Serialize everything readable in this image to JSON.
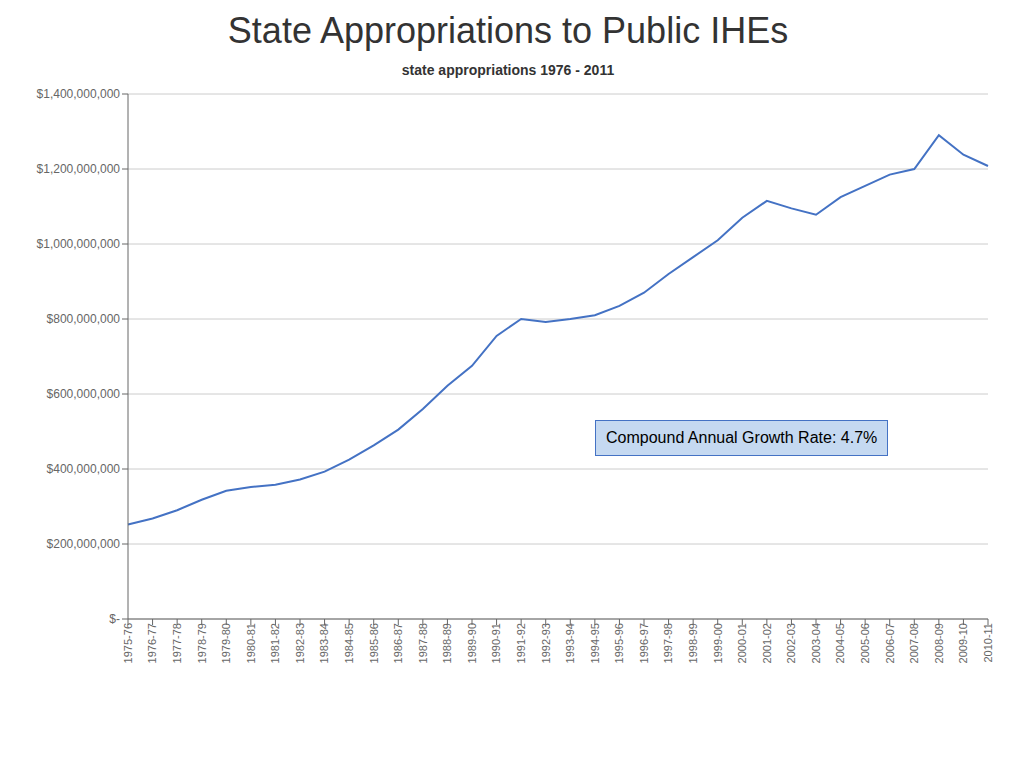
{
  "chart_data": {
    "type": "line",
    "title": "State Appropriations to Public IHEs",
    "subtitle": "state appropriations 1976 - 2011",
    "annotation": "Compound Annual Growth Rate: 4.7%",
    "categories": [
      "1975-76",
      "1976-77",
      "1977-78",
      "1978-79",
      "1979-80",
      "1980-81",
      "1981-82",
      "1982-83",
      "1983-84",
      "1984-85",
      "1985-86",
      "1986-87",
      "1987-88",
      "1988-89",
      "1989-90",
      "1990-91",
      "1991-92",
      "1992-93",
      "1993-94",
      "1994-95",
      "1995-96",
      "1996-97",
      "1997-98",
      "1998-99",
      "1999-00",
      "2000-01",
      "2001-02",
      "2002-03",
      "2003-04",
      "2004-05",
      "2005-06",
      "2006-07",
      "2007-08",
      "2008-09",
      "2009-10",
      "2010-11"
    ],
    "values": [
      252000000,
      268000000,
      290000000,
      318000000,
      342000000,
      352000000,
      358000000,
      372000000,
      393000000,
      425000000,
      463000000,
      505000000,
      560000000,
      622000000,
      675000000,
      755000000,
      800000000,
      792000000,
      800000000,
      810000000,
      835000000,
      870000000,
      920000000,
      965000000,
      1010000000,
      1070000000,
      1115000000,
      1095000000,
      1078000000,
      1125000000,
      1155000000,
      1185000000,
      1200000000,
      1290000000,
      1238000000,
      1208000000
    ],
    "color": "#4472C4",
    "ylim": [
      0,
      1400000000
    ],
    "yticks": [
      {
        "value": 0,
        "label": "$-"
      },
      {
        "value": 200000000,
        "label": "$200,000,000"
      },
      {
        "value": 400000000,
        "label": "$400,000,000"
      },
      {
        "value": 600000000,
        "label": "$600,000,000"
      },
      {
        "value": 800000000,
        "label": "$800,000,000"
      },
      {
        "value": 1000000000,
        "label": "$1,000,000,000"
      },
      {
        "value": 1200000000,
        "label": "$1,200,000,000"
      },
      {
        "value": 1400000000,
        "label": "$1,400,000,000"
      }
    ],
    "grid": true
  }
}
